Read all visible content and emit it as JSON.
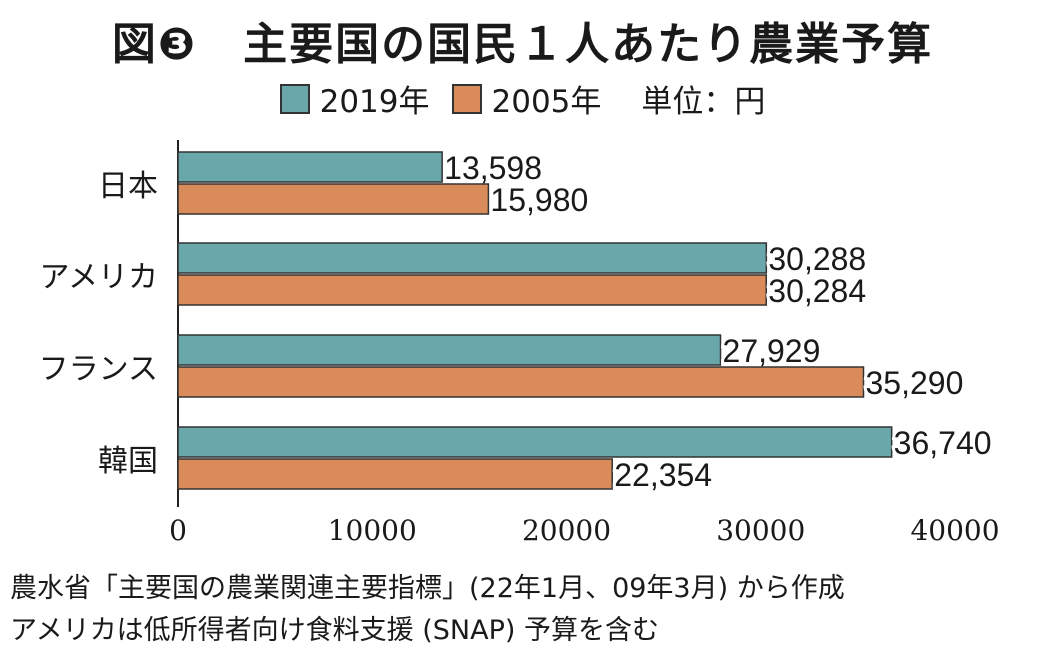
{
  "title": "図❸　主要国の国民１人あたり農業予算",
  "legend": {
    "items": [
      {
        "label": "2019年",
        "color": "#6aa7ab"
      },
      {
        "label": "2005年",
        "color": "#d98b5a"
      }
    ],
    "unit": "単位：円"
  },
  "chart_data": {
    "type": "bar",
    "orientation": "horizontal",
    "categories": [
      "日本",
      "アメリカ",
      "フランス",
      "韓国"
    ],
    "series": [
      {
        "name": "2019年",
        "values": [
          13598,
          30288,
          27929,
          36740
        ],
        "labels": [
          "13,598",
          "30,288",
          "27,929",
          "36,740"
        ],
        "color": "#6aa7ab"
      },
      {
        "name": "2005年",
        "values": [
          15980,
          30284,
          35290,
          22354
        ],
        "labels": [
          "15,980",
          "30,284",
          "35,290",
          "22,354"
        ],
        "color": "#d98b5a"
      }
    ],
    "xlim": [
      0,
      40000
    ],
    "xticks": [
      "0",
      "10000",
      "20000",
      "30000",
      "40000"
    ],
    "grid": false,
    "legend_position": "top"
  },
  "notes": [
    "農水省「主要国の農業関連主要指標」(22年1月、09年3月) から作成",
    "アメリカは低所得者向け食料支援 (SNAP) 予算を含む"
  ]
}
